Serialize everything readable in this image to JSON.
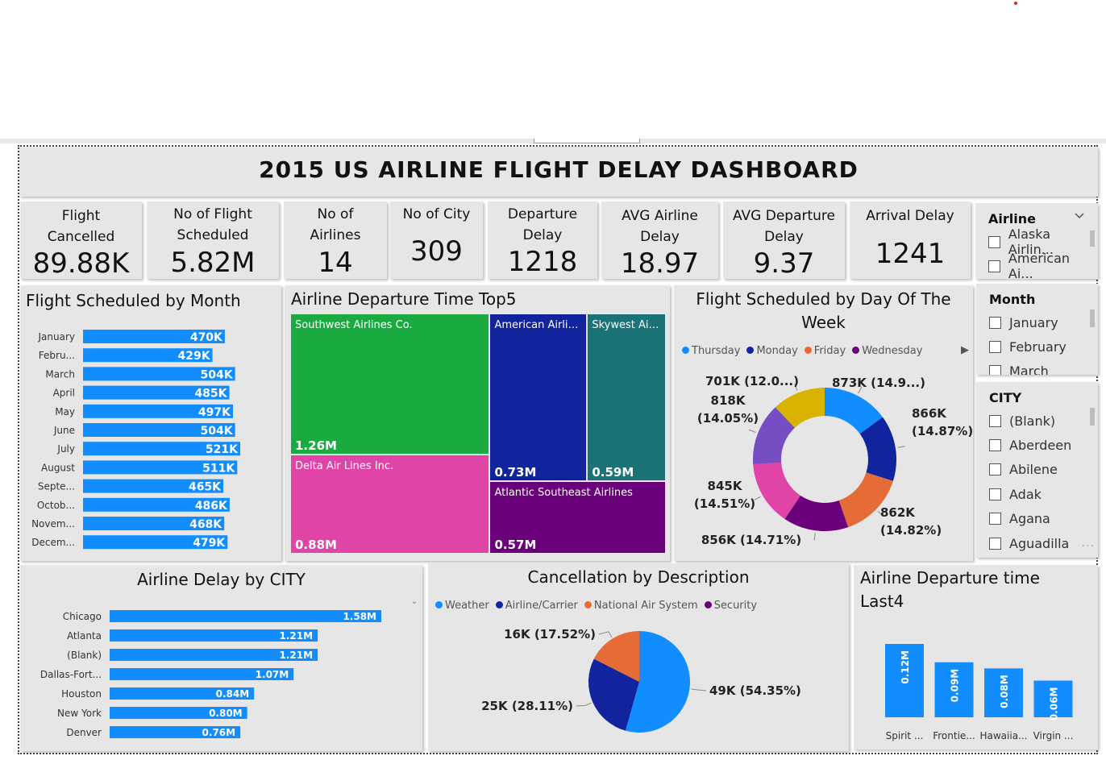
{
  "dashboard": {
    "title": "2015 US AIRLINE FLIGHT DELAY DASHBOARD",
    "colors": {
      "blue": "#118dff",
      "navy": "#12239e",
      "teal": "#1a7377",
      "orange": "#e66c37",
      "purple": "#6b007b",
      "pink": "#e044a7",
      "green": "#1aab40",
      "gold": "#d9b300",
      "violet": "#744ec2"
    }
  },
  "kpis": [
    {
      "label_lines": [
        "Flight",
        "Cancelled"
      ],
      "value": "89.88K"
    },
    {
      "label_lines": [
        "No of Flight",
        "Scheduled"
      ],
      "value": "5.82M"
    },
    {
      "label_lines": [
        "No of",
        "Airlines"
      ],
      "value": "14"
    },
    {
      "label_lines": [
        "No of City"
      ],
      "value": "309"
    },
    {
      "label_lines": [
        "Departure",
        "Delay"
      ],
      "value": "1218"
    },
    {
      "label_lines": [
        "AVG Airline",
        "Delay"
      ],
      "value": "18.97"
    },
    {
      "label_lines": [
        "AVG Departure",
        "Delay"
      ],
      "value": "9.37"
    },
    {
      "label_lines": [
        "Arrival Delay"
      ],
      "value": "1241"
    }
  ],
  "slicers": {
    "airline": {
      "title": "Airline",
      "items": [
        "Alaska Airlin...",
        "American Ai..."
      ],
      "chevron_icon": "chevron-down-icon"
    },
    "month": {
      "title": "Month",
      "items": [
        "January",
        "February",
        "March"
      ]
    },
    "city": {
      "title": "CITY",
      "items": [
        "(Blank)",
        "Aberdeen",
        "Abilene",
        "Adak",
        "Agana",
        "Aguadilla"
      ]
    }
  },
  "month_chart": {
    "title": "Flight Scheduled by Month",
    "chart_data": {
      "type": "bar",
      "categories": [
        "January",
        "Febru...",
        "March",
        "April",
        "May",
        "June",
        "July",
        "August",
        "Septe...",
        "Octob...",
        "Novem...",
        "Decem..."
      ],
      "values": [
        470,
        429,
        504,
        485,
        497,
        504,
        521,
        511,
        465,
        486,
        468,
        479
      ],
      "labels": [
        "470K",
        "429K",
        "504K",
        "485K",
        "497K",
        "504K",
        "521K",
        "511K",
        "465K",
        "486K",
        "468K",
        "479K"
      ],
      "unit": "K"
    }
  },
  "treemap": {
    "title": "Airline Departure Time Top5",
    "chart_data": {
      "type": "treemap",
      "items": [
        {
          "name": "Southwest Airlines Co.",
          "value": 1.26,
          "label": "1.26M",
          "color": "#1aab40"
        },
        {
          "name": "Delta Air Lines Inc.",
          "value": 0.88,
          "label": "0.88M",
          "color": "#e044a7"
        },
        {
          "name": "American Airlin...",
          "value": 0.73,
          "label": "0.73M",
          "color": "#12239e"
        },
        {
          "name": "Skywest Airli...",
          "value": 0.59,
          "label": "0.59M",
          "color": "#1a7377"
        },
        {
          "name": "Atlantic Southeast Airlines",
          "value": 0.57,
          "label": "0.57M",
          "color": "#6b007b"
        }
      ]
    }
  },
  "weekday_chart": {
    "title_lines": [
      "Flight Scheduled by Day Of The",
      "Week"
    ],
    "legend": [
      {
        "name": "Thursday",
        "color": "#118dff"
      },
      {
        "name": "Monday",
        "color": "#12239e"
      },
      {
        "name": "Friday",
        "color": "#e66c37"
      },
      {
        "name": "Wednesday",
        "color": "#6b007b"
      }
    ],
    "chart_data": {
      "type": "pie",
      "values": [
        873,
        866,
        862,
        856,
        845,
        818,
        701
      ],
      "colors": [
        "#118dff",
        "#12239e",
        "#e66c37",
        "#6b007b",
        "#e044a7",
        "#744ec2",
        "#d9b300"
      ],
      "labels": [
        "873K (14.9...)",
        "866K (14.87%)",
        "862K (14.82%)",
        "856K (14.71%)",
        "845K (14.51%)",
        "818K (14.05%)",
        "701K (12.0...)"
      ]
    }
  },
  "city_chart": {
    "title": "Airline Delay by CITY",
    "chart_data": {
      "type": "bar",
      "categories": [
        "Chicago",
        "Atlanta",
        "(Blank)",
        "Dallas-Fort...",
        "Houston",
        "New York",
        "Denver"
      ],
      "values": [
        1.58,
        1.21,
        1.21,
        1.07,
        0.84,
        0.8,
        0.76
      ],
      "labels": [
        "1.58M",
        "1.21M",
        "1.21M",
        "1.07M",
        "0.84M",
        "0.80M",
        "0.76M"
      ]
    }
  },
  "cancel_chart": {
    "title": "Cancellation by Description",
    "legend": [
      {
        "name": "Weather",
        "color": "#118dff"
      },
      {
        "name": "Airline/Carrier",
        "color": "#12239e"
      },
      {
        "name": "National Air System",
        "color": "#e66c37"
      },
      {
        "name": "Security",
        "color": "#6b007b"
      }
    ],
    "chart_data": {
      "type": "pie",
      "values": [
        54.35,
        28.11,
        17.52
      ],
      "colors": [
        "#118dff",
        "#12239e",
        "#e66c37"
      ],
      "labels": [
        "49K (54.35%)",
        "25K (28.11%)",
        "16K (17.52%)"
      ]
    }
  },
  "last4_chart": {
    "title_lines": [
      "Airline Departure time",
      "Last4"
    ],
    "chart_data": {
      "type": "bar",
      "categories": [
        "Spirit ...",
        "Frontie...",
        "Hawaiia...",
        "Virgin ..."
      ],
      "values": [
        0.12,
        0.09,
        0.08,
        0.06
      ],
      "labels": [
        "0.12M",
        "0.09M",
        "0.08M",
        "0.06M"
      ]
    }
  }
}
